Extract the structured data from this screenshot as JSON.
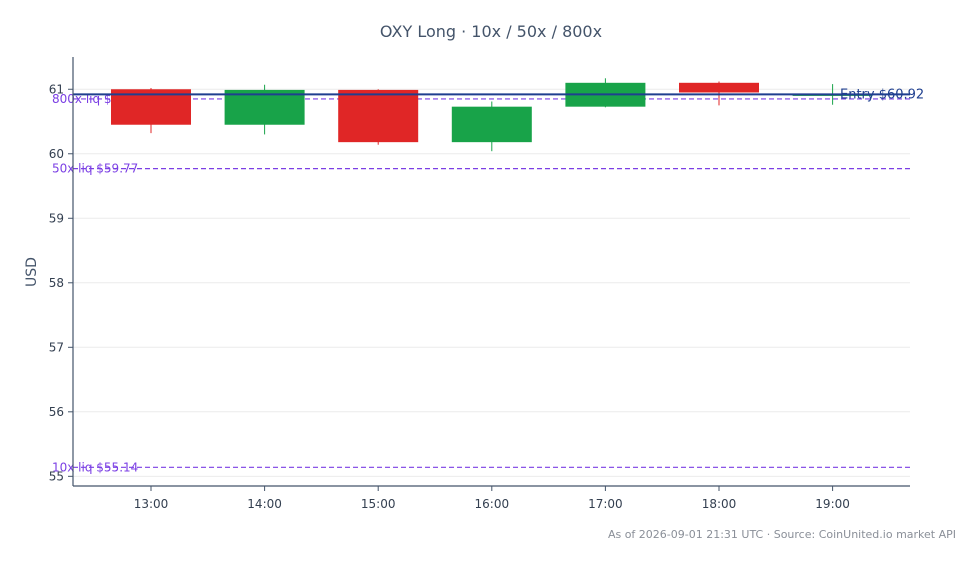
{
  "chart_data": {
    "type": "candlestick",
    "title": "OXY Long · 10x / 50x / 800x",
    "ylabel": "USD",
    "xlabel": "",
    "ylim": [
      54.85,
      61.5
    ],
    "yticks": [
      55,
      56,
      57,
      58,
      59,
      60,
      61
    ],
    "categories": [
      "13:00",
      "14:00",
      "15:00",
      "16:00",
      "17:00",
      "18:00",
      "19:00"
    ],
    "candles": [
      {
        "time": "13:00",
        "open": 61.0,
        "high": 61.02,
        "low": 60.32,
        "close": 60.45
      },
      {
        "time": "14:00",
        "open": 60.45,
        "high": 61.07,
        "low": 60.3,
        "close": 60.99
      },
      {
        "time": "15:00",
        "open": 60.99,
        "high": 61.0,
        "low": 60.14,
        "close": 60.18
      },
      {
        "time": "16:00",
        "open": 60.18,
        "high": 60.81,
        "low": 60.04,
        "close": 60.73
      },
      {
        "time": "17:00",
        "open": 60.73,
        "high": 61.17,
        "low": 60.72,
        "close": 61.1
      },
      {
        "time": "18:00",
        "open": 61.1,
        "high": 61.12,
        "low": 60.75,
        "close": 60.95
      },
      {
        "time": "19:00",
        "open": 60.9,
        "high": 61.08,
        "low": 60.76,
        "close": 60.92
      }
    ],
    "entry": {
      "label": "Entry $60.92",
      "value": 60.92
    },
    "liquidation_levels": [
      {
        "label": "800x liq $60.85",
        "value": 60.85
      },
      {
        "label": "50x liq $59.77",
        "value": 59.77
      },
      {
        "label": "10x liq $55.14",
        "value": 55.14
      }
    ],
    "colors": {
      "up": "#18a349",
      "down": "#e02626",
      "entry": "#1f3f8f",
      "liq": "#7b3fe4",
      "axis": "#44546a",
      "grid": "#ececec"
    },
    "grid": true,
    "footer": "As of 2026-09-01 21:31 UTC · Source: CoinUnited.io market API"
  }
}
